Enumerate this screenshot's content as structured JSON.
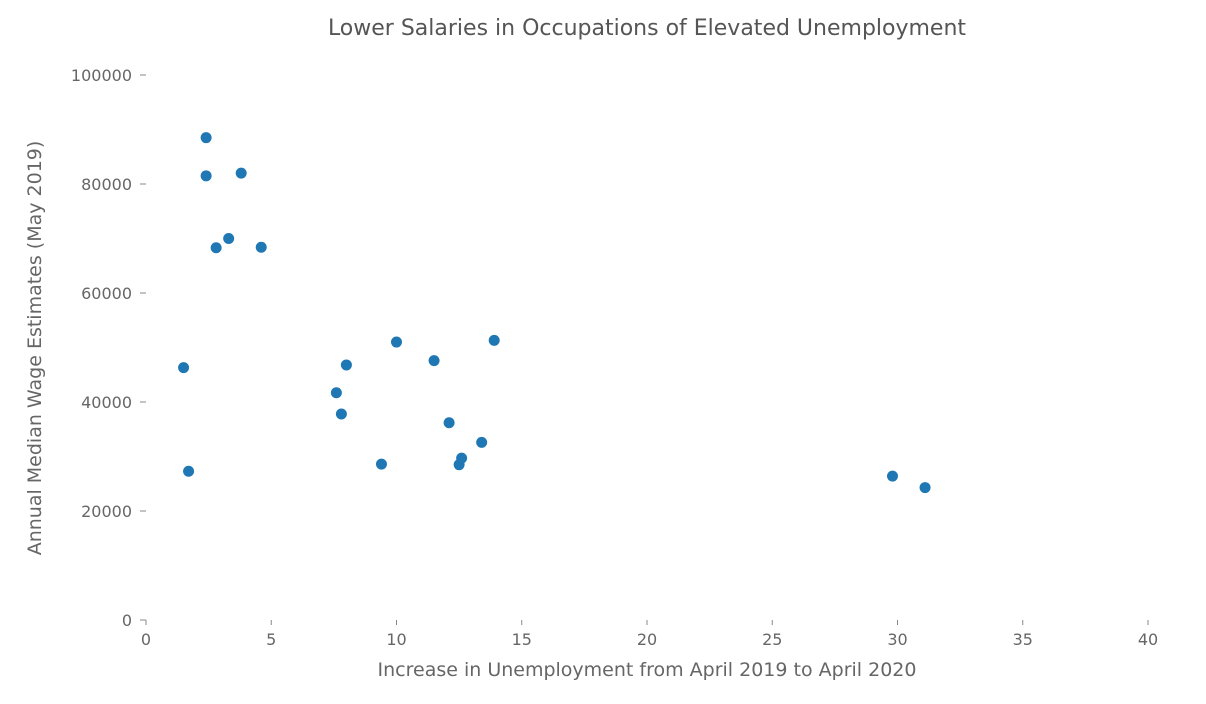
{
  "chart_data": {
    "type": "scatter",
    "title": "Lower Salaries in Occupations of Elevated Unemployment",
    "xlabel": "Increase in Unemployment from April 2019 to April 2020",
    "ylabel": "Annual Median Wage Estimates (May 2019)",
    "xlim": [
      0,
      40
    ],
    "ylim": [
      0,
      100000
    ],
    "xticks": [
      0,
      5,
      10,
      15,
      20,
      25,
      30,
      35,
      40
    ],
    "yticks": [
      0,
      20000,
      40000,
      60000,
      80000,
      100000
    ],
    "xtick_labels": [
      "0",
      "5",
      "10",
      "15",
      "20",
      "25",
      "30",
      "35",
      "40"
    ],
    "ytick_labels": [
      "0",
      "20000",
      "40000",
      "60000",
      "80000",
      "100000"
    ],
    "grid": false,
    "color": "#1f77b4",
    "points": [
      {
        "x": 1.5,
        "y": 46300
      },
      {
        "x": 1.7,
        "y": 27300
      },
      {
        "x": 2.4,
        "y": 88500
      },
      {
        "x": 2.4,
        "y": 81500
      },
      {
        "x": 2.8,
        "y": 68300
      },
      {
        "x": 3.3,
        "y": 70000
      },
      {
        "x": 3.8,
        "y": 82000
      },
      {
        "x": 4.6,
        "y": 68400
      },
      {
        "x": 7.6,
        "y": 41700
      },
      {
        "x": 7.8,
        "y": 37800
      },
      {
        "x": 8.0,
        "y": 46800
      },
      {
        "x": 9.4,
        "y": 28600
      },
      {
        "x": 10.0,
        "y": 51000
      },
      {
        "x": 11.5,
        "y": 47600
      },
      {
        "x": 12.1,
        "y": 36200
      },
      {
        "x": 12.5,
        "y": 28500
      },
      {
        "x": 12.6,
        "y": 29700
      },
      {
        "x": 13.4,
        "y": 32600
      },
      {
        "x": 13.9,
        "y": 51300
      },
      {
        "x": 29.8,
        "y": 26400
      },
      {
        "x": 31.1,
        "y": 24300
      }
    ]
  }
}
